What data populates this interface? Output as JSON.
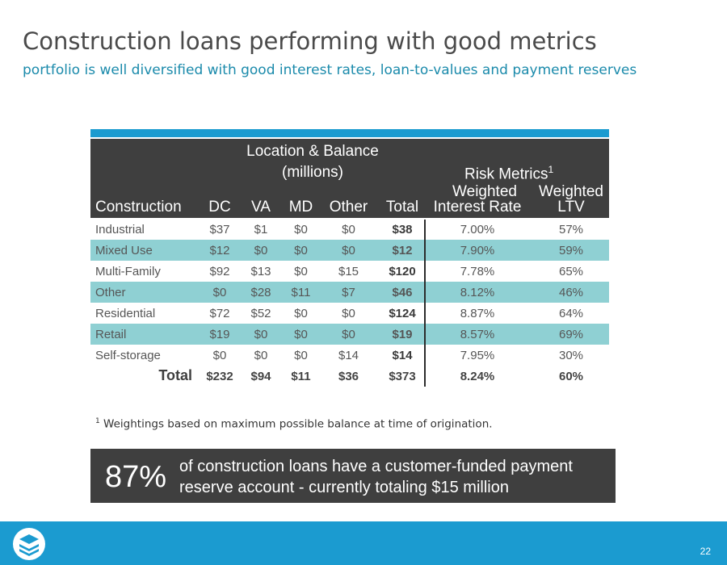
{
  "title": "Construction loans performing with good metrics",
  "subtitle": "portfolio is well diversified with good interest rates, loan-to-values and payment reserves",
  "table": {
    "group_headers": {
      "location_line1": "Location & Balance",
      "location_line2": "(millions)",
      "risk": "Risk Metrics",
      "risk_sup": "1"
    },
    "columns": {
      "construction": "Construction",
      "dc": "DC",
      "va": "VA",
      "md": "MD",
      "other": "Other",
      "total": "Total",
      "rate_line1": "Weighted",
      "rate_line2": "Interest Rate",
      "ltv_line1": "Weighted",
      "ltv_line2": "LTV"
    },
    "rows": [
      {
        "name": "Industrial",
        "dc": "$37",
        "va": "$1",
        "md": "$0",
        "other": "$0",
        "total": "$38",
        "rate": "7.00%",
        "ltv": "57%"
      },
      {
        "name": "Mixed Use",
        "dc": "$12",
        "va": "$0",
        "md": "$0",
        "other": "$0",
        "total": "$12",
        "rate": "7.90%",
        "ltv": "59%"
      },
      {
        "name": "Multi-Family",
        "dc": "$92",
        "va": "$13",
        "md": "$0",
        "other": "$15",
        "total": "$120",
        "rate": "7.78%",
        "ltv": "65%"
      },
      {
        "name": "Other",
        "dc": "$0",
        "va": "$28",
        "md": "$11",
        "other": "$7",
        "total": "$46",
        "rate": "8.12%",
        "ltv": "46%"
      },
      {
        "name": "Residential",
        "dc": "$72",
        "va": "$52",
        "md": "$0",
        "other": "$0",
        "total": "$124",
        "rate": "8.87%",
        "ltv": "64%"
      },
      {
        "name": "Retail",
        "dc": "$19",
        "va": "$0",
        "md": "$0",
        "other": "$0",
        "total": "$19",
        "rate": "8.57%",
        "ltv": "69%"
      },
      {
        "name": "Self-storage",
        "dc": "$0",
        "va": "$0",
        "md": "$0",
        "other": "$14",
        "total": "$14",
        "rate": "7.95%",
        "ltv": "30%"
      }
    ],
    "total_row": {
      "name": "Total",
      "dc": "$232",
      "va": "$94",
      "md": "$11",
      "other": "$36",
      "total": "$373",
      "rate": "8.24%",
      "ltv": "60%"
    }
  },
  "footnote": {
    "marker": "1",
    "text": "Weightings based on maximum possible balance at time of origination."
  },
  "callout": {
    "percent": "87%",
    "line1": "of construction loans have a customer-funded payment",
    "line2": "reserve account - currently totaling $15 million"
  },
  "footer": {
    "logo_icon": "stacked-layers-logo-icon",
    "page_number": "22"
  },
  "colors": {
    "accent_blue": "#1b9bd0",
    "teal_row": "#8fd0d3",
    "dark_header": "#3f3f3f",
    "subtitle_teal": "#1a8aab"
  }
}
